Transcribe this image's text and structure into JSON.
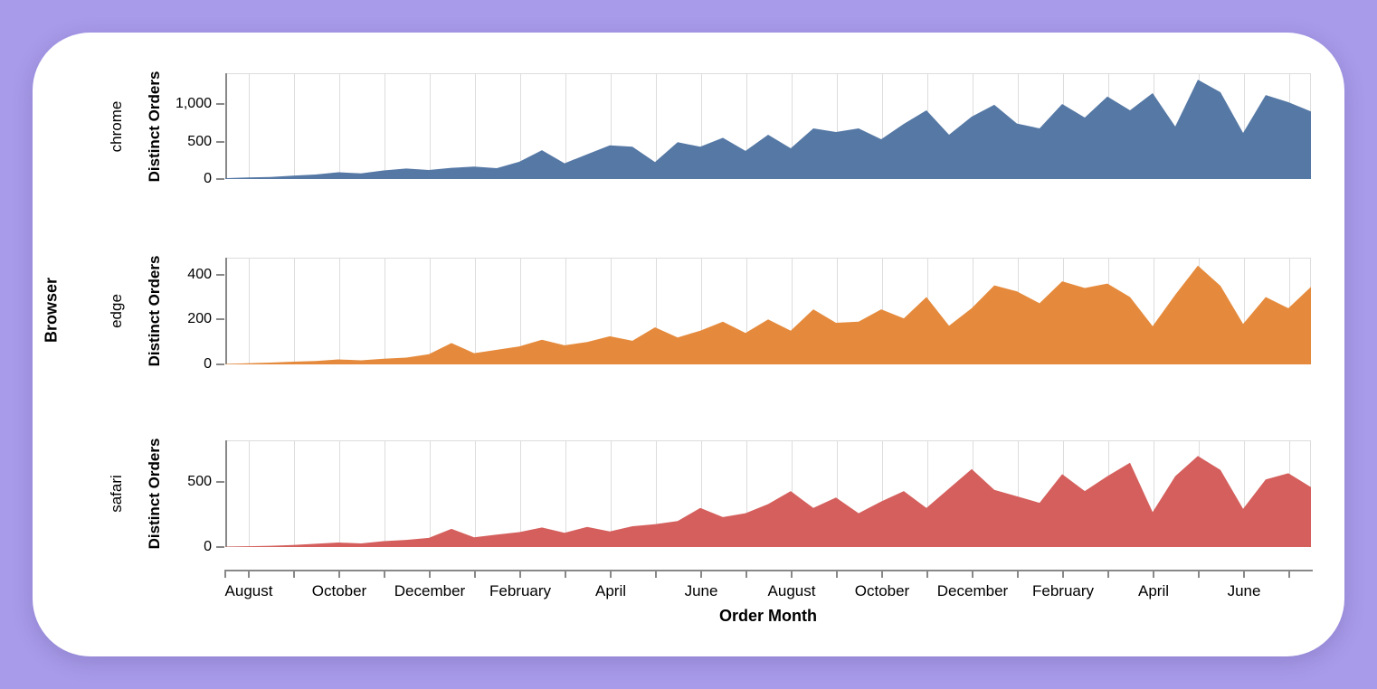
{
  "colors": {
    "background": "#a89be9",
    "card": "#ffffff",
    "gridline": "#dddddd",
    "axis": "#888888",
    "text": "#000000"
  },
  "chart_data": {
    "type": "area",
    "facet_field_title": "Browser",
    "x_axis_title": "Order Month",
    "y_axis_title": "Distinct Orders",
    "grid": true,
    "x_tick_labels": [
      "August",
      "October",
      "December",
      "February",
      "April",
      "June",
      "August",
      "October",
      "December",
      "February",
      "April",
      "June"
    ],
    "x_months_spanned": 24,
    "points_per_month": 2,
    "facets": [
      {
        "name": "chrome",
        "color": "#5578a5",
        "ylim": [
          0,
          1410
        ],
        "yticks": [
          {
            "value": 0,
            "label": "0"
          },
          {
            "value": 500,
            "label": "500"
          },
          {
            "value": 1000,
            "label": "1,000"
          }
        ],
        "values": [
          12,
          20,
          28,
          45,
          60,
          90,
          75,
          115,
          140,
          120,
          150,
          165,
          145,
          230,
          385,
          210,
          330,
          450,
          430,
          225,
          490,
          430,
          550,
          375,
          590,
          410,
          675,
          627,
          675,
          530,
          735,
          916,
          590,
          831,
          990,
          740,
          675,
          1000,
          820,
          1100,
          916,
          1145,
          700,
          1325,
          1157,
          615,
          1120,
          1024,
          900
        ]
      },
      {
        "name": "edge",
        "color": "#e58a3c",
        "ylim": [
          0,
          475
        ],
        "yticks": [
          {
            "value": 0,
            "label": "0"
          },
          {
            "value": 200,
            "label": "200"
          },
          {
            "value": 400,
            "label": "400"
          }
        ],
        "values": [
          2,
          5,
          8,
          12,
          15,
          22,
          18,
          25,
          30,
          45,
          95,
          50,
          65,
          80,
          110,
          85,
          100,
          125,
          105,
          165,
          120,
          150,
          190,
          140,
          200,
          150,
          245,
          185,
          190,
          245,
          205,
          300,
          172,
          250,
          352,
          325,
          272,
          370,
          340,
          360,
          300,
          170,
          310,
          440,
          350,
          180,
          300,
          250,
          345
        ]
      },
      {
        "name": "safari",
        "color": "#d45f5c",
        "ylim": [
          0,
          820
        ],
        "yticks": [
          {
            "value": 0,
            "label": "0"
          },
          {
            "value": 500,
            "label": "500"
          }
        ],
        "values": [
          3,
          6,
          10,
          15,
          25,
          35,
          28,
          45,
          55,
          70,
          140,
          75,
          95,
          115,
          150,
          110,
          155,
          120,
          160,
          175,
          200,
          300,
          230,
          260,
          330,
          430,
          300,
          380,
          260,
          350,
          430,
          300,
          450,
          600,
          440,
          390,
          340,
          560,
          430,
          545,
          648,
          268,
          545,
          700,
          592,
          293,
          520,
          567,
          460
        ]
      }
    ]
  }
}
